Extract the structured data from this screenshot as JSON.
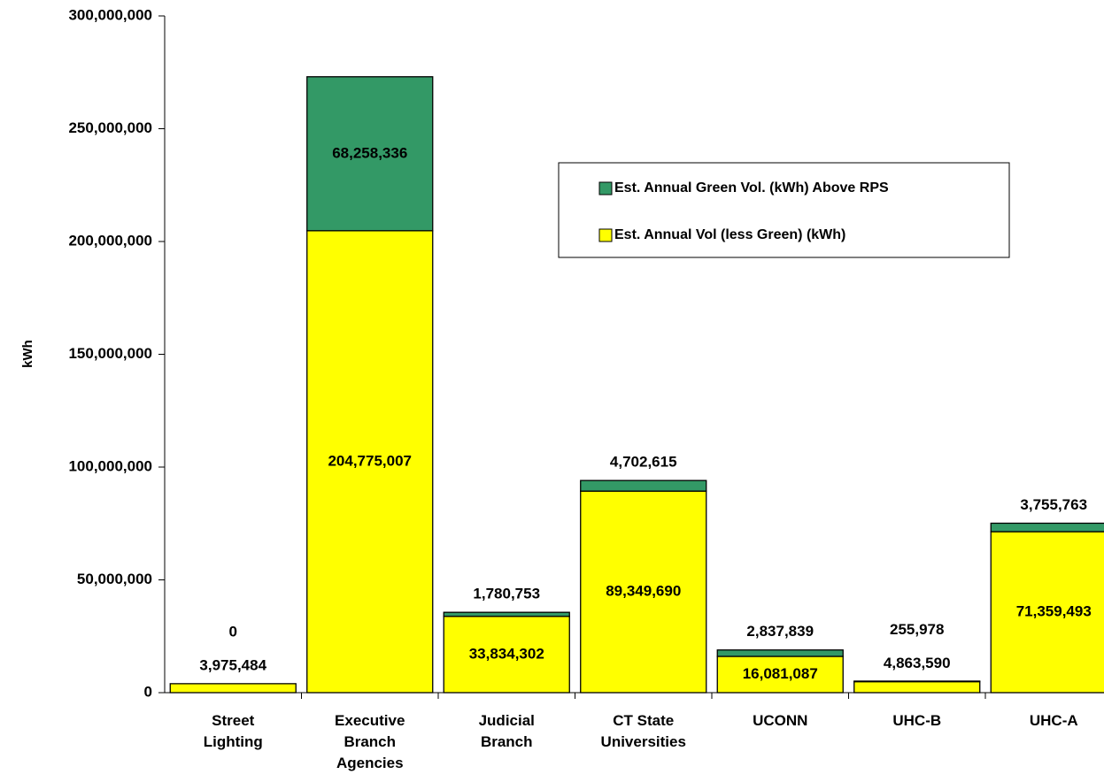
{
  "chart_data": {
    "type": "stacked_bar",
    "y_label": "kWh",
    "categories": [
      "Street Lighting",
      "Executive Branch Agencies",
      "Judicial Branch",
      "CT State Universities",
      "UCONN",
      "UHC-B",
      "UHC-A"
    ],
    "series": [
      {
        "name": "Est. Annual Vol (less Green) (kWh)",
        "color": "#ffff00",
        "values": [
          3975484,
          204775007,
          33834302,
          89349690,
          16081087,
          4863590,
          71359493
        ],
        "value_labels": [
          "3,975,484",
          "204,775,007",
          "33,834,302",
          "89,349,690",
          "16,081,087",
          "4,863,590",
          "71,359,493"
        ]
      },
      {
        "name": "Est. Annual Green Vol. (kWh) Above RPS",
        "color": "#339966",
        "values": [
          0,
          68258336,
          1780753,
          4702615,
          2837839,
          255978,
          3755763
        ],
        "value_labels": [
          "0",
          "68,258,336",
          "1,780,753",
          "4,702,615",
          "2,837,839",
          "255,978",
          "3,755,763"
        ]
      }
    ],
    "ylim": [
      0,
      300000000
    ],
    "yticks": [
      0,
      {
        "value": 50000000,
        "label": "50,000,000"
      },
      {
        "value": 100000000,
        "label": "100,000,000"
      },
      {
        "value": 150000000,
        "label": "150,000,000"
      },
      {
        "value": 200000000,
        "label": "200,000,000"
      },
      {
        "value": 250000000,
        "label": "250,000,000"
      },
      {
        "value": 300000000,
        "label": "300,000,000"
      }
    ],
    "legend": "upper right"
  }
}
